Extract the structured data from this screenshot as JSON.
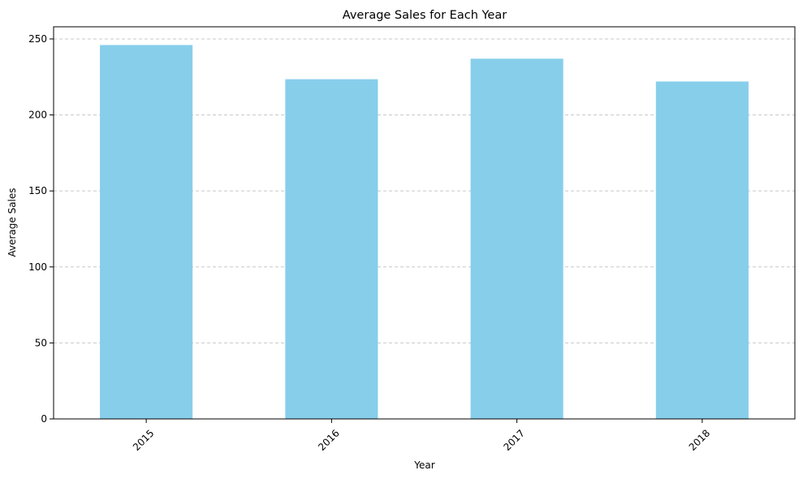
{
  "chart_data": {
    "type": "bar",
    "title": "Average Sales for Each Year",
    "xlabel": "Year",
    "ylabel": "Average Sales",
    "categories": [
      "2015",
      "2016",
      "2017",
      "2018"
    ],
    "values": [
      246,
      223.5,
      237,
      222
    ],
    "ylim": [
      0,
      258
    ],
    "yticks": [
      0,
      50,
      100,
      150,
      200,
      250
    ],
    "bar_color": "#87ceeb",
    "grid": "y-dashed",
    "legend": "none",
    "xtick_rotation": 45
  }
}
